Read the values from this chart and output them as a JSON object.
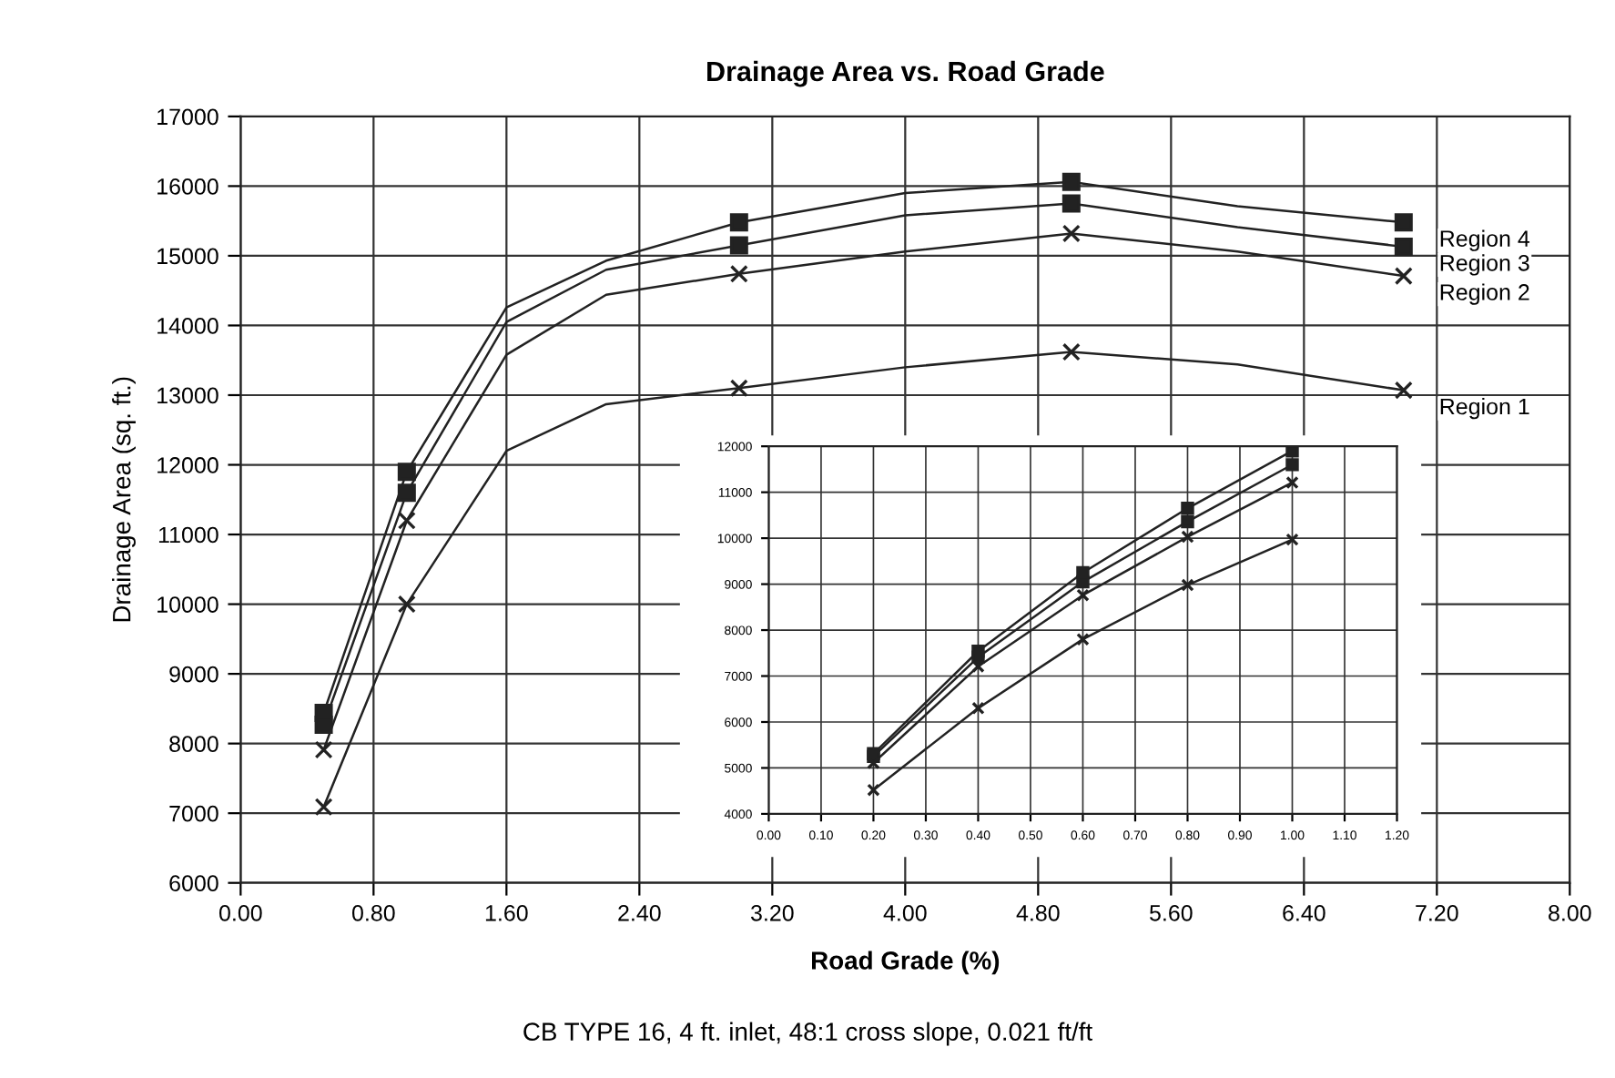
{
  "chart_data": [
    {
      "type": "line",
      "title": "Drainage Area vs. Road Grade",
      "xlabel": "Road Grade (%)",
      "ylabel": "Drainage Area (sq. ft.)",
      "annotations": [
        "CB TYPE 16, 4 ft. inlet, 48:1 cross slope, 0.021 ft/ft"
      ],
      "x": [
        0.5,
        1.0,
        1.6,
        2.2,
        3.0,
        4.0,
        5.0,
        6.0,
        7.0
      ],
      "series": [
        {
          "name": "Region 4",
          "color": "#222222",
          "values": [
            8440,
            11900,
            14260,
            14930,
            15480,
            15900,
            16060,
            15710,
            15480
          ]
        },
        {
          "name": "Region 3",
          "color": "#222222",
          "values": [
            8270,
            11600,
            14050,
            14800,
            15150,
            15580,
            15750,
            15410,
            15130
          ]
        },
        {
          "name": "Region 2",
          "color": "#222222",
          "values": [
            7910,
            11200,
            13580,
            14440,
            14740,
            15060,
            15320,
            15060,
            14710
          ]
        },
        {
          "name": "Region 1",
          "color": "#222222",
          "values": [
            7090,
            10000,
            12200,
            12870,
            13100,
            13400,
            13620,
            13440,
            13070
          ]
        },
        {
          "type": "scatter",
          "x": [
            0.5,
            1.0,
            3.0,
            5.0,
            7.0
          ],
          "color": "#222222",
          "marker": "square",
          "values": [
            8440,
            11900,
            15480,
            16060,
            15480
          ]
        },
        {
          "type": "scatter",
          "x": [
            0.5,
            1.0,
            3.0,
            5.0,
            7.0
          ],
          "color": "#222222",
          "marker": "square",
          "values": [
            8270,
            11600,
            15150,
            15750,
            15130
          ]
        },
        {
          "type": "scatter",
          "x": [
            0.5,
            1.0,
            3.0,
            5.0,
            7.0
          ],
          "color": "#222222",
          "marker": "cross",
          "values": [
            7910,
            11200,
            14740,
            15320,
            14710
          ]
        },
        {
          "type": "scatter",
          "x": [
            0.5,
            1.0,
            3.0,
            5.0,
            7.0
          ],
          "color": "#222222",
          "marker": "cross",
          "values": [
            7090,
            10000,
            13100,
            13620,
            13070
          ]
        }
      ],
      "xlim": [
        0,
        8
      ],
      "xticks": [
        {
          "value": 0,
          "label": "0.00"
        },
        {
          "value": 0.8,
          "label": "0.80"
        },
        {
          "value": 1.6,
          "label": "1.60"
        },
        {
          "value": 2.4,
          "label": "2.40"
        },
        {
          "value": 3.2,
          "label": "3.20"
        },
        {
          "value": 4.0,
          "label": "4.00"
        },
        {
          "value": 4.8,
          "label": "4.80"
        },
        {
          "value": 5.6,
          "label": "5.60"
        },
        {
          "value": 6.4,
          "label": "6.40"
        },
        {
          "value": 7.2,
          "label": "7.20"
        },
        {
          "value": 8.0,
          "label": "8.00"
        }
      ],
      "ylim": [
        6000,
        17000
      ],
      "yticks": [
        6000,
        7000,
        8000,
        9000,
        10000,
        11000,
        12000,
        13000,
        14000,
        15000,
        16000,
        17000
      ],
      "grid": true,
      "legend": false
    },
    {
      "type": "line",
      "x": [
        0.2,
        0.4,
        0.6,
        0.8,
        1.0
      ],
      "series": [
        {
          "color": "#222222",
          "marker": "square",
          "values": [
            5310,
            7540,
            9250,
            10650,
            11900
          ]
        },
        {
          "color": "#222222",
          "marker": "square",
          "values": [
            5250,
            7410,
            9050,
            10360,
            11600
          ]
        },
        {
          "color": "#222222",
          "marker": "cross",
          "values": [
            5110,
            7210,
            8760,
            10030,
            11210
          ]
        },
        {
          "color": "#222222",
          "marker": "cross",
          "values": [
            4520,
            6300,
            7800,
            8980,
            9970
          ]
        }
      ],
      "xlim": [
        0,
        1.2
      ],
      "xticks": [
        {
          "value": 0,
          "label": "0.00"
        },
        {
          "value": 0.1,
          "label": "0.10"
        },
        {
          "value": 0.2,
          "label": "0.20"
        },
        {
          "value": 0.3,
          "label": "0.30"
        },
        {
          "value": 0.4,
          "label": "0.40"
        },
        {
          "value": 0.5,
          "label": "0.50"
        },
        {
          "value": 0.6,
          "label": "0.60"
        },
        {
          "value": 0.7,
          "label": "0.70"
        },
        {
          "value": 0.8,
          "label": "0.80"
        },
        {
          "value": 0.9,
          "label": "0.90"
        },
        {
          "value": 1.0,
          "label": "1.00"
        },
        {
          "value": 1.1,
          "label": "1.10"
        },
        {
          "value": 1.2,
          "label": "1.20"
        }
      ],
      "ylim": [
        4000,
        12000
      ],
      "yticks": [
        4000,
        5000,
        6000,
        7000,
        8000,
        9000,
        10000,
        11000,
        12000
      ],
      "grid": true,
      "legend": false
    }
  ]
}
